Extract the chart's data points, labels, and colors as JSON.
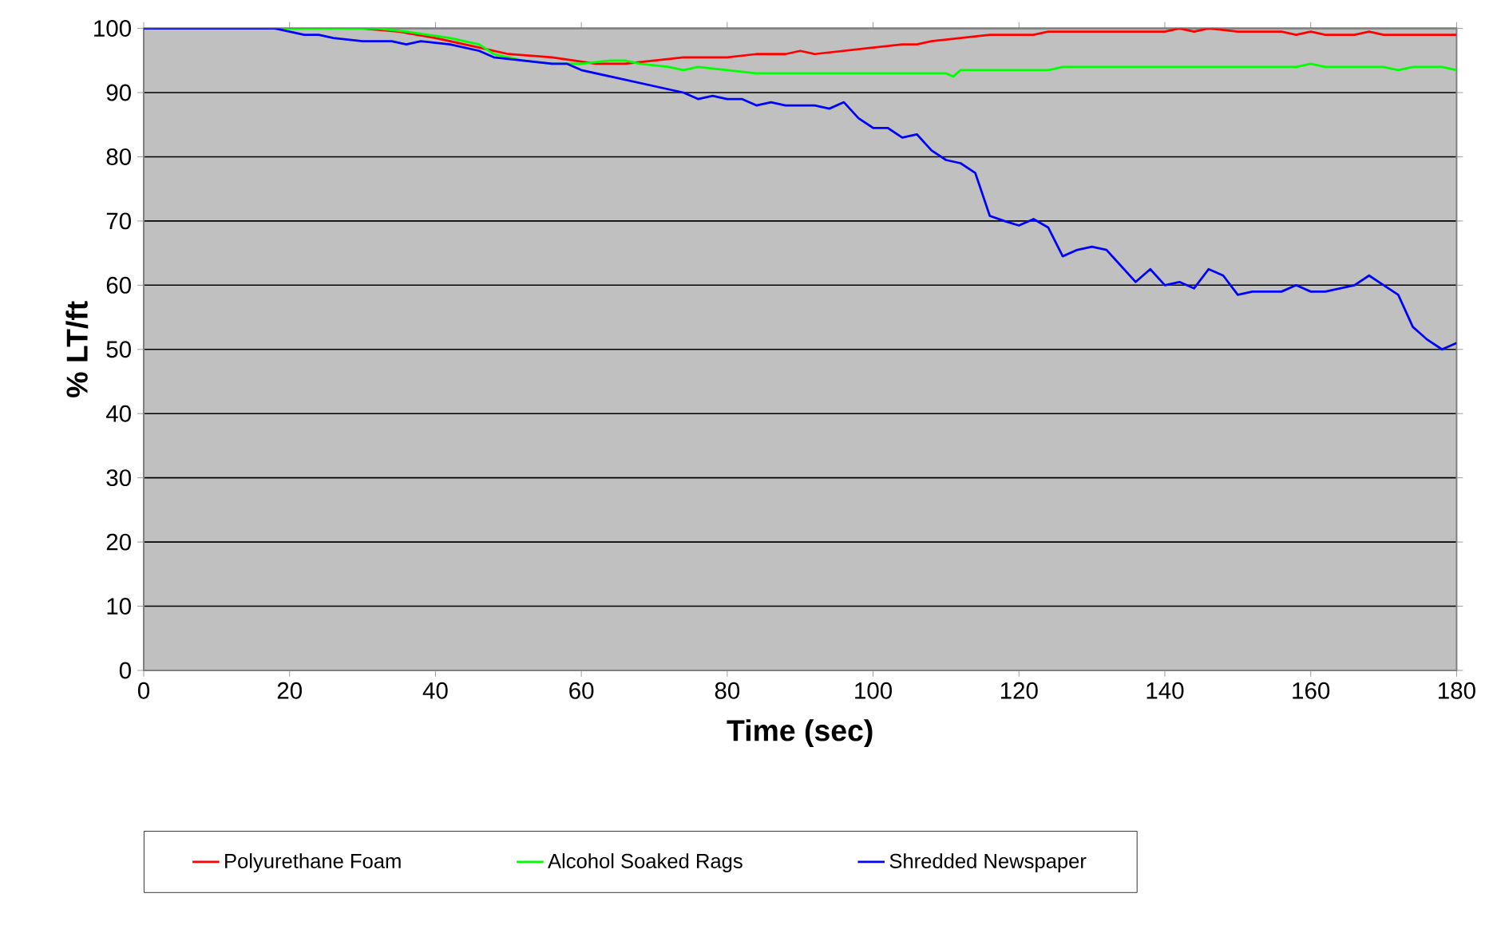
{
  "chart_data": {
    "type": "line",
    "xlabel": "Time (sec)",
    "ylabel": "% LT/ft",
    "xlim": [
      0,
      180
    ],
    "ylim": [
      0,
      100
    ],
    "xticks": [
      0,
      20,
      40,
      60,
      80,
      100,
      120,
      140,
      160,
      180
    ],
    "yticks": [
      0,
      10,
      20,
      30,
      40,
      50,
      60,
      70,
      80,
      90,
      100
    ],
    "grid": "y",
    "legend": "bottom",
    "marker": "none",
    "line_style": "solid",
    "series": [
      {
        "name": "Polyurethane Foam",
        "color": "#ff0000",
        "x": [
          0,
          30,
          35,
          40,
          46,
          50,
          56,
          62,
          66,
          70,
          74,
          80,
          84,
          88,
          90,
          92,
          96,
          100,
          104,
          106,
          108,
          112,
          116,
          122,
          124,
          140,
          142,
          144,
          146,
          150,
          156,
          158,
          160,
          162,
          166,
          168,
          170,
          180
        ],
        "values": [
          100,
          100,
          99.5,
          98.5,
          97,
          96,
          95.5,
          94.5,
          94.5,
          95,
          95.5,
          95.5,
          96,
          96,
          96.5,
          96,
          96.5,
          97,
          97.5,
          97.5,
          98,
          98.5,
          99,
          99,
          99.5,
          99.5,
          100,
          99.5,
          100,
          99.5,
          99.5,
          99,
          99.5,
          99,
          99,
          99.5,
          99,
          99
        ]
      },
      {
        "name": "Alcohol Soaked Rags",
        "color": "#00ff00",
        "x": [
          0,
          32,
          36,
          42,
          46,
          48,
          52,
          56,
          60,
          64,
          66,
          68,
          72,
          74,
          76,
          80,
          84,
          110,
          111,
          112,
          124,
          126,
          158,
          160,
          162,
          170,
          172,
          174,
          178,
          180
        ],
        "values": [
          100,
          100,
          99.5,
          98.5,
          97.5,
          96,
          95,
          94.5,
          94.5,
          95,
          95,
          94.5,
          94,
          93.5,
          94,
          93.5,
          93,
          93,
          92.5,
          93.5,
          93.5,
          94,
          94,
          94.5,
          94,
          94,
          93.5,
          94,
          94,
          93.5
        ]
      },
      {
        "name": "Shredded Newspaper",
        "color": "#0000ff",
        "x": [
          0,
          18,
          22,
          24,
          26,
          30,
          34,
          36,
          38,
          42,
          46,
          48,
          52,
          56,
          58,
          60,
          64,
          68,
          72,
          74,
          76,
          78,
          80,
          82,
          84,
          86,
          88,
          92,
          94,
          96,
          98,
          100,
          102,
          104,
          106,
          108,
          110,
          112,
          114,
          116,
          118,
          120,
          122,
          124,
          126,
          128,
          130,
          132,
          134,
          136,
          138,
          140,
          142,
          144,
          146,
          148,
          150,
          152,
          156,
          158,
          160,
          162,
          164,
          166,
          168,
          170,
          172,
          174,
          176,
          178,
          180
        ],
        "values": [
          100,
          100,
          99,
          99,
          98.5,
          98,
          98,
          97.5,
          98,
          97.5,
          96.5,
          95.5,
          95,
          94.5,
          94.5,
          93.5,
          92.5,
          91.5,
          90.5,
          90,
          89,
          89.5,
          89,
          89,
          88,
          88.5,
          88,
          88,
          87.5,
          88.5,
          86,
          84.5,
          84.5,
          83,
          83.5,
          81,
          79.5,
          79,
          77.5,
          70.8,
          70,
          69.3,
          70.3,
          69,
          64.5,
          65.5,
          66,
          65.5,
          63,
          60.5,
          62.5,
          60,
          60.5,
          59.5,
          62.5,
          61.5,
          58.5,
          59,
          59,
          60,
          59,
          59,
          59.5,
          60,
          61.5,
          60,
          58.5,
          53.5,
          51.5,
          50,
          51
        ]
      }
    ]
  }
}
